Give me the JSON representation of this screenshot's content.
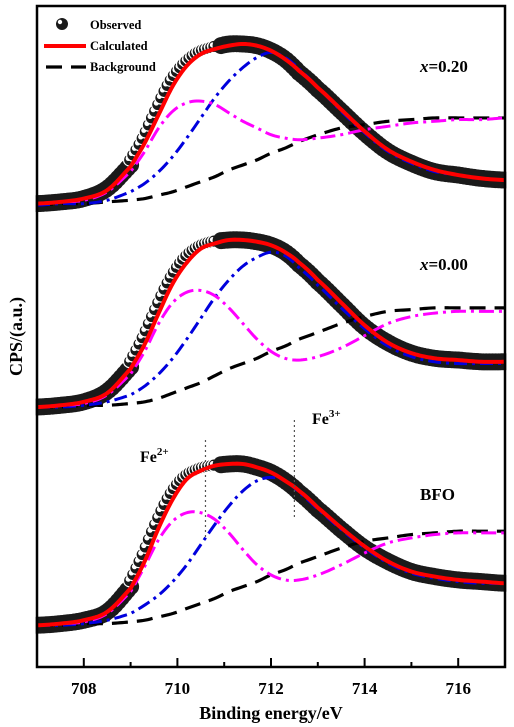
{
  "chart_data": {
    "type": "line",
    "xlabel": "Binding energy/eV",
    "ylabel": "CPS/(a.u.)",
    "xlim": [
      707,
      717
    ],
    "x_ticks": [
      708,
      710,
      712,
      714,
      716
    ],
    "y_ticks_labeled": false,
    "legend": {
      "position": "top-left",
      "entries": [
        "Observed",
        "Calculated",
        "Background"
      ]
    },
    "colors": {
      "observed": "#1a1a1a",
      "calculated": "#ff0000",
      "background": "#000000",
      "fe2": "#ff00ff",
      "fe3": "#0000dd"
    },
    "annotations": [
      {
        "text": "Fe",
        "sup": "2+",
        "x": 710.6
      },
      {
        "text": "Fe",
        "sup": "3+",
        "x": 712.5
      }
    ],
    "panels": [
      {
        "label": "x=0.20",
        "label_italic_part": "x",
        "label_rest": "=0.20",
        "x": [
          707.0,
          707.5,
          708.0,
          708.5,
          709.0,
          709.3,
          709.6,
          709.9,
          710.2,
          710.5,
          710.8,
          711.1,
          711.4,
          711.7,
          712.0,
          712.3,
          712.6,
          713.0,
          713.5,
          714.0,
          714.5,
          715.0,
          715.5,
          716.0,
          716.5,
          717.0
        ],
        "observed": [
          0.05,
          0.06,
          0.08,
          0.14,
          0.28,
          0.42,
          0.6,
          0.77,
          0.88,
          0.95,
          0.98,
          1.0,
          1.0,
          0.99,
          0.96,
          0.91,
          0.83,
          0.73,
          0.6,
          0.47,
          0.36,
          0.29,
          0.24,
          0.22,
          0.2,
          0.19
        ],
        "calculated": [
          0.05,
          0.06,
          0.08,
          0.13,
          0.27,
          0.41,
          0.58,
          0.75,
          0.87,
          0.94,
          0.97,
          0.99,
          1.0,
          0.99,
          0.96,
          0.91,
          0.84,
          0.74,
          0.61,
          0.48,
          0.37,
          0.3,
          0.25,
          0.22,
          0.2,
          0.19
        ],
        "background": [
          0.04,
          0.05,
          0.05,
          0.06,
          0.07,
          0.08,
          0.1,
          0.12,
          0.15,
          0.18,
          0.21,
          0.25,
          0.28,
          0.31,
          0.35,
          0.38,
          0.42,
          0.46,
          0.5,
          0.52,
          0.54,
          0.55,
          0.56,
          0.56,
          0.56,
          0.56
        ],
        "fe2": [
          0.05,
          0.06,
          0.07,
          0.12,
          0.24,
          0.36,
          0.5,
          0.6,
          0.65,
          0.66,
          0.64,
          0.59,
          0.54,
          0.5,
          0.46,
          0.44,
          0.43,
          0.44,
          0.46,
          0.49,
          0.51,
          0.53,
          0.54,
          0.55,
          0.55,
          0.56
        ],
        "fe3": [
          0.04,
          0.05,
          0.05,
          0.07,
          0.12,
          0.17,
          0.24,
          0.33,
          0.44,
          0.56,
          0.68,
          0.78,
          0.86,
          0.92,
          0.95,
          0.92,
          0.85,
          0.74,
          0.6,
          0.47,
          0.36,
          0.29,
          0.24,
          0.22,
          0.2,
          0.19
        ]
      },
      {
        "label": "x=0.00",
        "label_italic_part": "x",
        "label_rest": "=0.00",
        "x": [
          707.0,
          707.5,
          708.0,
          708.5,
          709.0,
          709.3,
          709.6,
          709.9,
          710.2,
          710.5,
          710.8,
          711.1,
          711.4,
          711.7,
          712.0,
          712.3,
          712.6,
          713.0,
          713.5,
          714.0,
          714.5,
          715.0,
          715.5,
          716.0,
          716.5,
          717.0
        ],
        "observed": [
          0.04,
          0.05,
          0.07,
          0.13,
          0.27,
          0.42,
          0.6,
          0.77,
          0.89,
          0.96,
          0.99,
          1.0,
          1.0,
          0.99,
          0.97,
          0.93,
          0.86,
          0.76,
          0.63,
          0.5,
          0.41,
          0.35,
          0.32,
          0.31,
          0.3,
          0.3
        ],
        "calculated": [
          0.04,
          0.05,
          0.07,
          0.12,
          0.26,
          0.4,
          0.58,
          0.75,
          0.87,
          0.95,
          0.98,
          1.0,
          1.0,
          0.99,
          0.97,
          0.93,
          0.87,
          0.77,
          0.64,
          0.51,
          0.41,
          0.35,
          0.32,
          0.31,
          0.3,
          0.3
        ],
        "background": [
          0.04,
          0.04,
          0.05,
          0.05,
          0.06,
          0.07,
          0.09,
          0.12,
          0.15,
          0.18,
          0.22,
          0.26,
          0.29,
          0.32,
          0.36,
          0.39,
          0.43,
          0.47,
          0.52,
          0.56,
          0.59,
          0.6,
          0.61,
          0.61,
          0.61,
          0.61
        ],
        "fe2": [
          0.04,
          0.05,
          0.06,
          0.11,
          0.23,
          0.36,
          0.52,
          0.64,
          0.7,
          0.71,
          0.68,
          0.61,
          0.52,
          0.43,
          0.36,
          0.32,
          0.31,
          0.33,
          0.38,
          0.45,
          0.52,
          0.56,
          0.58,
          0.59,
          0.59,
          0.59
        ],
        "fe3": [
          0.04,
          0.04,
          0.05,
          0.07,
          0.11,
          0.16,
          0.23,
          0.32,
          0.43,
          0.55,
          0.67,
          0.77,
          0.85,
          0.9,
          0.93,
          0.91,
          0.84,
          0.74,
          0.61,
          0.49,
          0.39,
          0.33,
          0.3,
          0.29,
          0.29,
          0.29
        ]
      },
      {
        "label": "BFO",
        "label_italic_part": "",
        "label_rest": "BFO",
        "x": [
          707.0,
          707.5,
          708.0,
          708.5,
          709.0,
          709.3,
          709.6,
          709.9,
          710.2,
          710.5,
          710.8,
          711.1,
          711.4,
          711.7,
          712.0,
          712.3,
          712.6,
          713.0,
          713.5,
          714.0,
          714.5,
          715.0,
          715.5,
          716.0,
          716.5,
          717.0
        ],
        "observed": [
          0.04,
          0.05,
          0.07,
          0.12,
          0.27,
          0.44,
          0.64,
          0.81,
          0.92,
          0.97,
          0.99,
          1.0,
          1.0,
          0.98,
          0.95,
          0.9,
          0.83,
          0.73,
          0.61,
          0.5,
          0.42,
          0.36,
          0.33,
          0.31,
          0.3,
          0.29
        ],
        "calculated": [
          0.04,
          0.05,
          0.07,
          0.12,
          0.26,
          0.42,
          0.62,
          0.79,
          0.91,
          0.96,
          0.99,
          1.0,
          1.0,
          0.98,
          0.95,
          0.9,
          0.84,
          0.74,
          0.62,
          0.51,
          0.42,
          0.36,
          0.33,
          0.31,
          0.3,
          0.29
        ],
        "background": [
          0.04,
          0.04,
          0.05,
          0.05,
          0.06,
          0.07,
          0.09,
          0.11,
          0.14,
          0.17,
          0.2,
          0.24,
          0.27,
          0.3,
          0.34,
          0.37,
          0.41,
          0.45,
          0.5,
          0.54,
          0.56,
          0.58,
          0.59,
          0.6,
          0.6,
          0.6
        ],
        "fe2": [
          0.04,
          0.05,
          0.06,
          0.11,
          0.24,
          0.39,
          0.55,
          0.66,
          0.71,
          0.71,
          0.67,
          0.59,
          0.49,
          0.4,
          0.34,
          0.31,
          0.31,
          0.34,
          0.4,
          0.47,
          0.53,
          0.56,
          0.58,
          0.59,
          0.59,
          0.59
        ],
        "fe3": [
          0.04,
          0.04,
          0.05,
          0.07,
          0.11,
          0.16,
          0.22,
          0.3,
          0.4,
          0.52,
          0.64,
          0.75,
          0.84,
          0.9,
          0.92,
          0.9,
          0.83,
          0.73,
          0.61,
          0.5,
          0.41,
          0.35,
          0.32,
          0.3,
          0.29,
          0.29
        ]
      }
    ]
  }
}
